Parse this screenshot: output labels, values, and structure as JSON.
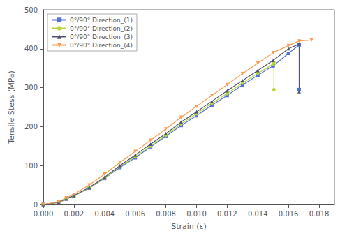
{
  "chart_data": {
    "type": "line",
    "xlabel": "Strain (ε)",
    "ylabel": "Tensile Stess (MPa)",
    "xlim": [
      0.0,
      0.019
    ],
    "ylim": [
      0,
      500
    ],
    "xticks": [
      {
        "value": 0.0,
        "label": "0.000"
      },
      {
        "value": 0.002,
        "label": "0.002"
      },
      {
        "value": 0.004,
        "label": "0.004"
      },
      {
        "value": 0.006,
        "label": "0.006"
      },
      {
        "value": 0.008,
        "label": "0.008"
      },
      {
        "value": 0.01,
        "label": "0.010"
      },
      {
        "value": 0.012,
        "label": "0.012"
      },
      {
        "value": 0.014,
        "label": "0.014"
      },
      {
        "value": 0.016,
        "label": "0.016"
      },
      {
        "value": 0.018,
        "label": "0.018"
      }
    ],
    "yticks": [
      0,
      100,
      200,
      300,
      400,
      500
    ],
    "grid": false,
    "legend": "upper left",
    "series": [
      {
        "name": "0°/90° Direction_(1)",
        "marker": "square",
        "x": [
          0.0,
          0.001,
          0.0015,
          0.002,
          0.003,
          0.004,
          0.005,
          0.006,
          0.007,
          0.008,
          0.009,
          0.01,
          0.011,
          0.012,
          0.013,
          0.014,
          0.015,
          0.016,
          0.0167,
          0.0167
        ],
        "values": [
          0,
          5,
          14,
          22,
          42,
          67,
          95,
          120,
          148,
          175,
          203,
          228,
          255,
          280,
          307,
          332,
          356,
          388,
          410,
          295
        ]
      },
      {
        "name": "0°/90° Direction_(2)",
        "marker": "circle",
        "x": [
          0.0,
          0.001,
          0.0015,
          0.002,
          0.003,
          0.004,
          0.005,
          0.006,
          0.007,
          0.008,
          0.009,
          0.01,
          0.011,
          0.012,
          0.013,
          0.014,
          0.015,
          0.01505,
          0.01505
        ],
        "values": [
          0,
          5,
          14,
          22,
          43,
          68,
          97,
          123,
          150,
          178,
          207,
          233,
          260,
          285,
          312,
          337,
          360,
          365,
          295
        ]
      },
      {
        "name": "0°/90° Direction_(3)",
        "marker": "triangle-up",
        "x": [
          0.0,
          0.001,
          0.0015,
          0.002,
          0.003,
          0.004,
          0.005,
          0.006,
          0.007,
          0.008,
          0.009,
          0.01,
          0.011,
          0.012,
          0.013,
          0.014,
          0.015,
          0.016,
          0.0167,
          0.0167
        ],
        "values": [
          0,
          6,
          15,
          23,
          44,
          70,
          100,
          127,
          155,
          182,
          212,
          238,
          265,
          292,
          318,
          344,
          370,
          400,
          412,
          290
        ]
      },
      {
        "name": "0°/90° Direction_(4)",
        "marker": "triangle-down",
        "x": [
          0.0,
          0.001,
          0.0015,
          0.002,
          0.003,
          0.004,
          0.005,
          0.006,
          0.007,
          0.008,
          0.009,
          0.01,
          0.011,
          0.012,
          0.013,
          0.014,
          0.015,
          0.016,
          0.0167,
          0.0175
        ],
        "values": [
          0,
          7,
          17,
          26,
          50,
          78,
          108,
          136,
          165,
          194,
          224,
          252,
          280,
          308,
          336,
          363,
          390,
          408,
          420,
          422
        ]
      }
    ]
  }
}
